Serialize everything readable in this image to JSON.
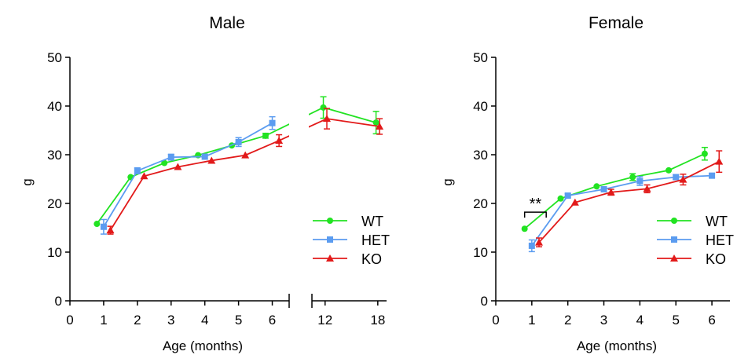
{
  "colors": {
    "WT": "#22e322",
    "HET": "#5b9cf0",
    "KO": "#e21a1a",
    "axis": "#000000"
  },
  "legend": [
    "WT",
    "HET",
    "KO"
  ],
  "annotations": {
    "significance": "**"
  },
  "chart_data": [
    {
      "type": "line",
      "title": "Male",
      "xlabel": "Age (months)",
      "ylabel": "g",
      "ylim": [
        0,
        50
      ],
      "yticks": [
        0,
        10,
        20,
        30,
        40,
        50
      ],
      "xlim_segment1": [
        0,
        6.5
      ],
      "xticks_segment1": [
        0,
        1,
        2,
        3,
        4,
        5,
        6
      ],
      "xlim_segment2": [
        10.5,
        19
      ],
      "xticks_segment2": [
        12,
        18
      ],
      "axis_break": true,
      "legend_position": "bottom-right",
      "series": [
        {
          "name": "WT",
          "x": [
            0.8,
            1.8,
            2.8,
            3.8,
            4.8,
            5.8,
            11.8,
            17.8
          ],
          "y": [
            15.8,
            25.4,
            28.3,
            29.9,
            31.9,
            33.9,
            39.7,
            36.6
          ],
          "err": [
            0,
            0,
            0,
            0,
            0,
            0.5,
            2.2,
            2.3
          ]
        },
        {
          "name": "HET",
          "x": [
            1.0,
            2.0,
            3.0,
            4.0,
            5.0,
            6.0
          ],
          "y": [
            15.2,
            26.7,
            29.5,
            29.6,
            32.6,
            36.5
          ],
          "err": [
            1.5,
            0.6,
            0.6,
            0.5,
            0.9,
            1.3
          ]
        },
        {
          "name": "KO",
          "x": [
            1.2,
            2.2,
            3.2,
            4.2,
            5.2,
            6.2,
            12.2,
            18.2
          ],
          "y": [
            14.5,
            25.6,
            27.5,
            28.8,
            29.9,
            32.9,
            37.4,
            35.8
          ],
          "err": [
            0.8,
            0,
            0,
            0,
            0,
            1.2,
            2.1,
            1.6
          ]
        }
      ]
    },
    {
      "type": "line",
      "title": "Female",
      "xlabel": "Age (months)",
      "ylabel": "g",
      "ylim": [
        0,
        50
      ],
      "yticks": [
        0,
        10,
        20,
        30,
        40,
        50
      ],
      "xlim": [
        0,
        6.5
      ],
      "xticks": [
        0,
        1,
        2,
        3,
        4,
        5,
        6
      ],
      "legend_position": "bottom-right",
      "series": [
        {
          "name": "WT",
          "x": [
            0.8,
            1.8,
            2.8,
            3.8,
            4.8,
            5.8
          ],
          "y": [
            14.8,
            21.0,
            23.5,
            25.4,
            26.8,
            30.2
          ],
          "err": [
            0,
            0,
            0,
            0.7,
            0,
            1.3
          ]
        },
        {
          "name": "HET",
          "x": [
            1.0,
            2.0,
            3.0,
            4.0,
            5.0,
            6.0
          ],
          "y": [
            11.3,
            21.6,
            22.9,
            24.6,
            25.4,
            25.7
          ],
          "err": [
            1.2,
            0.4,
            0.5,
            0.9,
            0.5,
            0.4
          ]
        },
        {
          "name": "KO",
          "x": [
            1.2,
            2.2,
            3.2,
            4.2,
            5.2,
            6.2
          ],
          "y": [
            12.0,
            20.2,
            22.3,
            23.0,
            24.9,
            28.6
          ],
          "err": [
            0.9,
            0,
            0.6,
            0.8,
            1.1,
            2.2
          ]
        }
      ]
    }
  ]
}
